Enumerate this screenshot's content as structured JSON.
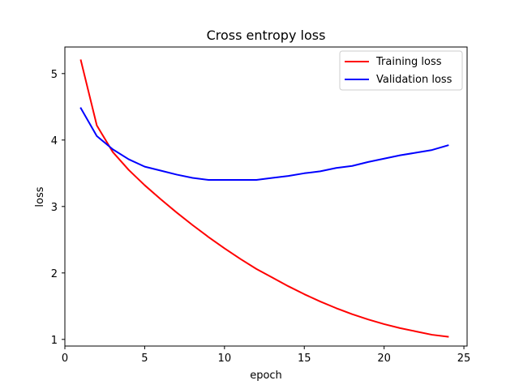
{
  "chart_data": {
    "type": "line",
    "title": "Cross entropy loss",
    "xlabel": "epoch",
    "ylabel": "loss",
    "xlim": [
      0,
      25.2
    ],
    "ylim": [
      0.9,
      5.4
    ],
    "xticks": [
      0,
      5,
      10,
      15,
      20,
      25
    ],
    "yticks": [
      1,
      2,
      3,
      4,
      5
    ],
    "grid": false,
    "legend_position": "top-right",
    "x": [
      1,
      2,
      3,
      4,
      5,
      6,
      7,
      8,
      9,
      10,
      11,
      12,
      13,
      14,
      15,
      16,
      17,
      18,
      19,
      20,
      21,
      22,
      23,
      24
    ],
    "series": [
      {
        "name": "Training loss",
        "color": "#ff0000",
        "values": [
          5.2,
          4.22,
          3.82,
          3.55,
          3.32,
          3.11,
          2.91,
          2.72,
          2.54,
          2.37,
          2.21,
          2.06,
          1.93,
          1.8,
          1.68,
          1.57,
          1.47,
          1.38,
          1.3,
          1.23,
          1.17,
          1.12,
          1.07,
          1.04
        ]
      },
      {
        "name": "Validation loss",
        "color": "#0000ff",
        "values": [
          4.48,
          4.06,
          3.86,
          3.71,
          3.6,
          3.54,
          3.48,
          3.43,
          3.4,
          3.4,
          3.4,
          3.4,
          3.43,
          3.46,
          3.5,
          3.53,
          3.58,
          3.61,
          3.67,
          3.72,
          3.77,
          3.81,
          3.85,
          3.92
        ]
      }
    ]
  }
}
